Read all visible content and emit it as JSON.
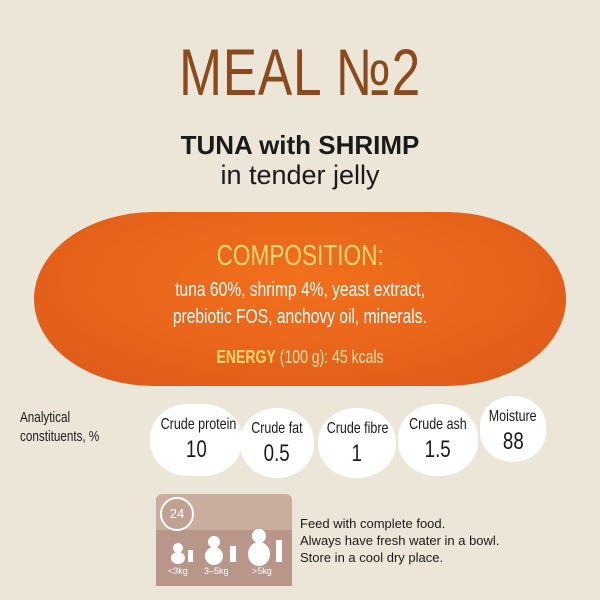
{
  "header": {
    "title": "MEAL №2",
    "product": "TUNA with SHRIMP",
    "description": "in tender jelly"
  },
  "composition": {
    "heading": "COMPOSITION:",
    "lines": [
      "tuna 60%, shrimp 4%, yeast extract,",
      "prebiotic FOS, anchovy oil, minerals."
    ],
    "energy": {
      "label": "ENERGY",
      "value": "(100 g): 45 kcals"
    }
  },
  "analytical": {
    "heading": [
      "Analytical",
      "constituents, %"
    ],
    "items": [
      {
        "name": "Crude protein",
        "value": "10"
      },
      {
        "name": "Crude fat",
        "value": "0.5"
      },
      {
        "name": "Crude fibre",
        "value": "1"
      },
      {
        "name": "Crude ash",
        "value": "1.5"
      },
      {
        "name": "Moisture",
        "value": "88"
      }
    ]
  },
  "feeding": {
    "hours": "24",
    "weights": [
      "<3kg",
      "3–5kg",
      ">5kg"
    ],
    "instructions": [
      "Feed with complete food.",
      "Always have fresh water in a bowl.",
      "Store in a cool dry place."
    ]
  }
}
